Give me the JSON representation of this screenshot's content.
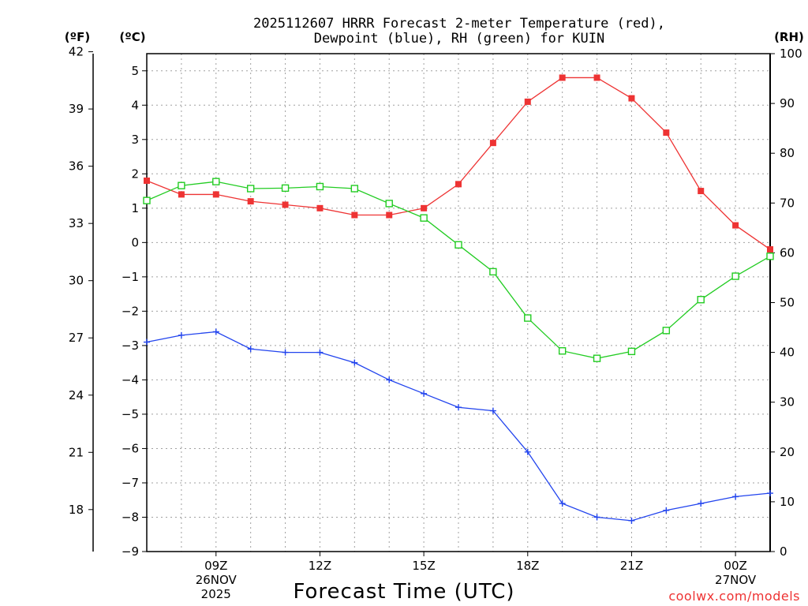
{
  "chart_data": {
    "type": "line",
    "title_line1": "2025112607 HRRR Forecast 2-meter Temperature (red),",
    "title_line2": "Dewpoint (blue), RH (green) for KUIN",
    "left_outer_unit": "(ºF)",
    "left_inner_unit": "(ºC)",
    "right_unit": "(RH)",
    "xlabel": "Forecast Time (UTC)",
    "credit": "coolwx.com/models",
    "x_hours": [
      7,
      8,
      9,
      10,
      11,
      12,
      13,
      14,
      15,
      16,
      17,
      18,
      19,
      20,
      21,
      22,
      23,
      24,
      25
    ],
    "xlim": [
      7,
      25
    ],
    "x_ticks": [
      {
        "hour": 9,
        "lines": [
          "09Z",
          "26NOV",
          "2025"
        ]
      },
      {
        "hour": 12,
        "lines": [
          "12Z"
        ]
      },
      {
        "hour": 15,
        "lines": [
          "15Z"
        ]
      },
      {
        "hour": 18,
        "lines": [
          "18Z"
        ]
      },
      {
        "hour": 21,
        "lines": [
          "21Z"
        ]
      },
      {
        "hour": 24,
        "lines": [
          "00Z",
          "27NOV"
        ]
      }
    ],
    "celsius_axis": {
      "ylim": [
        -9,
        5.5
      ],
      "ticks": [
        -9,
        -8,
        -7,
        -6,
        -5,
        -4,
        -3,
        -2,
        -1,
        0,
        1,
        2,
        3,
        4,
        5
      ]
    },
    "fahrenheit_axis": {
      "ylim": [
        15.8,
        41.9
      ],
      "ticks": [
        18,
        21,
        24,
        27,
        30,
        33,
        36,
        39,
        42
      ]
    },
    "rh_axis": {
      "ylim": [
        0,
        100
      ],
      "ticks": [
        0,
        10,
        20,
        30,
        40,
        50,
        60,
        70,
        80,
        90,
        100
      ]
    },
    "series": [
      {
        "name": "2-meter Temperature",
        "axis": "celsius",
        "color": "#ee3333",
        "marker": "filled-square",
        "values": [
          1.8,
          1.4,
          1.4,
          1.2,
          1.1,
          1.0,
          0.8,
          0.8,
          1.0,
          1.7,
          2.9,
          4.1,
          4.8,
          4.8,
          4.2,
          3.2,
          1.5,
          0.5,
          -0.2
        ]
      },
      {
        "name": "Dewpoint",
        "axis": "celsius",
        "color": "#2244ee",
        "marker": "plus",
        "values": [
          -2.9,
          -2.7,
          -2.6,
          -3.1,
          -3.2,
          -3.2,
          -3.5,
          -4.0,
          -4.4,
          -4.8,
          -4.9,
          -6.1,
          -7.6,
          -8.0,
          -8.1,
          -7.8,
          -7.6,
          -7.4,
          -7.3
        ]
      },
      {
        "name": "RH",
        "axis": "rh",
        "color": "#22cc22",
        "marker": "open-square",
        "values": [
          70.5,
          73.5,
          74.3,
          72.9,
          73.0,
          73.3,
          72.9,
          69.9,
          67.0,
          61.6,
          56.2,
          46.9,
          40.3,
          38.8,
          40.2,
          44.4,
          50.6,
          55.3,
          59.3
        ]
      }
    ]
  }
}
